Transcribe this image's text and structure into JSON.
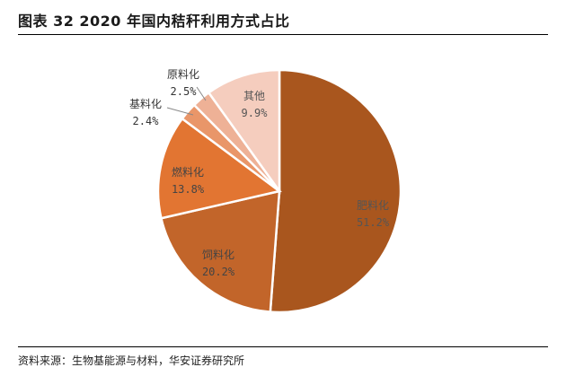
{
  "title": "图表 32 2020 年国内秸秆利用方式占比",
  "source": "资料来源：生物基能源与材料，华安证券研究所",
  "chart_data": {
    "type": "pie",
    "title": "",
    "slices": [
      {
        "name": "肥料化",
        "value": 51.2,
        "label": "51.2%",
        "color": "#A9561E",
        "text_color": "#555555"
      },
      {
        "name": "饲料化",
        "value": 20.2,
        "label": "20.2%",
        "color": "#C2652A",
        "text_color": "#444444"
      },
      {
        "name": "燃料化",
        "value": 13.8,
        "label": "13.8%",
        "color": "#E27532",
        "text_color": "#444444"
      },
      {
        "name": "基料化",
        "value": 2.4,
        "label": "2.4%",
        "color": "#E99669",
        "text_color": "#333333"
      },
      {
        "name": "原料化",
        "value": 2.5,
        "label": "2.5%",
        "color": "#EEB196",
        "text_color": "#333333"
      },
      {
        "name": "其他",
        "value": 9.9,
        "label": "9.9%",
        "color": "#F5CDBE",
        "text_color": "#555555"
      }
    ]
  }
}
